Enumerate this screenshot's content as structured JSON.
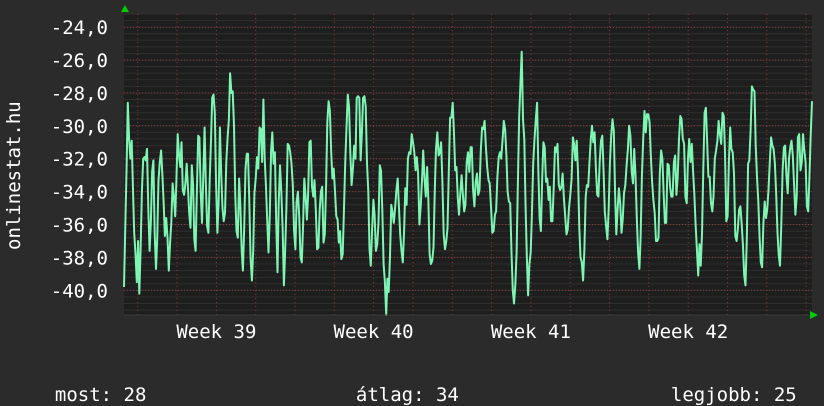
{
  "watermark": "onlinestat.hu",
  "stats": [
    {
      "label": "most:",
      "value": "28"
    },
    {
      "label": "átlag:",
      "value": "34"
    },
    {
      "label": "legjobb:",
      "value": "25"
    }
  ],
  "colors": {
    "background": "#2b2b2b",
    "plot_background": "#1e1e1e",
    "line": "#7ff5b4",
    "grid": "#8a3a3a",
    "axis_arrow": "#00cc00"
  },
  "chart_data": {
    "type": "line",
    "grid": true,
    "ylim": [
      -41.5,
      -23.2
    ],
    "yticks": [
      -24,
      -26,
      -28,
      -30,
      -32,
      -34,
      -36,
      -38,
      -40
    ],
    "ytick_labels": [
      "-24,0",
      "-26,0",
      "-28,0",
      "-30,0",
      "-32,0",
      "-34,0",
      "-36,0",
      "-38,0",
      "-40,0"
    ],
    "xlim": [
      0,
      350
    ],
    "xticks": [
      {
        "label": "Week 39",
        "x": 47
      },
      {
        "label": "Week 40",
        "x": 127
      },
      {
        "label": "Week 41",
        "x": 207
      },
      {
        "label": "Week 42",
        "x": 287
      }
    ],
    "series": [
      {
        "values": [
          -39.8,
          -36.1,
          -32.5,
          -28.6,
          -30.8,
          -32.0,
          -30.9,
          -33.9,
          -36.5,
          -37.8,
          -39.5,
          -37.0,
          -40.2,
          -37.5,
          -34.0,
          -32.0,
          -31.9,
          -32.1,
          -31.4,
          -35.0,
          -37.6,
          -35.8,
          -32.8,
          -32.1,
          -36.6,
          -38.7,
          -36.9,
          -33.3,
          -32.2,
          -31.5,
          -33.0,
          -34.6,
          -36.7,
          -35.6,
          -36.8,
          -38.8,
          -37.2,
          -35.9,
          -33.5,
          -34.3,
          -35.5,
          -33.3,
          -30.5,
          -31.8,
          -32.5,
          -31.0,
          -33.9,
          -34.2,
          -33.5,
          -32.3,
          -33.7,
          -35.3,
          -36.2,
          -32.4,
          -33.6,
          -36.9,
          -37.6,
          -33.9,
          -30.6,
          -30.7,
          -34.0,
          -35.9,
          -33.0,
          -30.1,
          -33.4,
          -36.1,
          -36.5,
          -33.3,
          -30.9,
          -28.3,
          -28.1,
          -29.2,
          -33.6,
          -36.5,
          -34.7,
          -30.1,
          -32.9,
          -35.0,
          -35.8,
          -35.3,
          -32.2,
          -30.7,
          -29.6,
          -26.8,
          -28.0,
          -27.9,
          -30.0,
          -34.3,
          -36.4,
          -36.8,
          -33.2,
          -34.9,
          -37.6,
          -38.8,
          -36.2,
          -32.6,
          -31.7,
          -31.7,
          -34.6,
          -38.1,
          -39.4,
          -37.6,
          -34.1,
          -33.2,
          -31.9,
          -32.6,
          -30.1,
          -30.2,
          -32.2,
          -28.4,
          -32.0,
          -33.6,
          -35.7,
          -37.7,
          -35.4,
          -31.5,
          -30.4,
          -32.3,
          -31.6,
          -35.8,
          -38.9,
          -34.7,
          -32.4,
          -34.0,
          -36.2,
          -39.7,
          -37.7,
          -35.0,
          -31.1,
          -31.2,
          -31.6,
          -32.3,
          -33.6,
          -36.4,
          -37.5,
          -34.6,
          -34.0,
          -35.5,
          -38.0,
          -38.3,
          -36.2,
          -33.2,
          -34.3,
          -35.7,
          -34.2,
          -31.0,
          -30.9,
          -33.7,
          -34.3,
          -33.3,
          -35.1,
          -37.5,
          -37.4,
          -35.1,
          -34.0,
          -33.7,
          -37.1,
          -36.6,
          -33.6,
          -29.8,
          -28.5,
          -29.1,
          -31.6,
          -33.2,
          -32.6,
          -34.0,
          -35.5,
          -35.7,
          -37.1,
          -36.4,
          -38.1,
          -37.8,
          -35.0,
          -32.3,
          -30.1,
          -28.1,
          -28.9,
          -31.6,
          -33.6,
          -32.6,
          -31.2,
          -32.0,
          -28.3,
          -28.2,
          -28.3,
          -32.1,
          -30.4,
          -28.3,
          -28.2,
          -28.8,
          -32.3,
          -34.0,
          -37.5,
          -38.5,
          -36.3,
          -34.5,
          -35.4,
          -37.6,
          -37.2,
          -35.9,
          -32.4,
          -32.7,
          -35.1,
          -38.4,
          -39.5,
          -41.5,
          -39.3,
          -40.1,
          -37.9,
          -34.8,
          -35.3,
          -35.9,
          -35.0,
          -33.9,
          -33.2,
          -34.9,
          -36.6,
          -37.6,
          -38.3,
          -36.4,
          -33.8,
          -34.8,
          -32.0,
          -31.6,
          -31.7,
          -30.5,
          -31.0,
          -31.6,
          -32.7,
          -31.9,
          -32.9,
          -36.0,
          -34.9,
          -33.3,
          -31.5,
          -33.2,
          -34.3,
          -32.5,
          -34.6,
          -37.8,
          -38.4,
          -38.2,
          -37.4,
          -33.9,
          -31.4,
          -30.4,
          -31.8,
          -31.6,
          -31.0,
          -33.4,
          -36.6,
          -37.5,
          -37.0,
          -36.2,
          -32.8,
          -29.5,
          -29.5,
          -28.6,
          -30.3,
          -32.7,
          -32.5,
          -34.4,
          -35.4,
          -34.1,
          -33.0,
          -34.2,
          -35.2,
          -34.8,
          -32.2,
          -31.6,
          -32.8,
          -31.3,
          -31.3,
          -33.9,
          -34.9,
          -33.4,
          -32.9,
          -34.2,
          -33.9,
          -31.5,
          -30.1,
          -30.2,
          -29.7,
          -31.3,
          -32.5,
          -33.3,
          -33.5,
          -34.9,
          -36.5,
          -36.4,
          -35.4,
          -35.2,
          -33.1,
          -31.9,
          -31.6,
          -32.0,
          -30.9,
          -29.7,
          -30.2,
          -31.8,
          -34.0,
          -34.6,
          -34.7,
          -37.7,
          -40.0,
          -40.8,
          -39.7,
          -37.7,
          -33.4,
          -29.4,
          -27.5,
          -25.5,
          -29.6,
          -30.8,
          -34.7,
          -37.9,
          -40.3,
          -38.4,
          -37.7,
          -35.4,
          -32.3,
          -30.8,
          -29.6,
          -28.6,
          -32.6,
          -35.6,
          -36.4,
          -33.2,
          -31.0,
          -31.3,
          -33.4,
          -33.2,
          -34.5,
          -33.7,
          -35.8,
          -35.8,
          -33.8,
          -31.3,
          -31.6,
          -31.1,
          -33.6,
          -33.9,
          -33.7,
          -32.9,
          -34.4,
          -35.5,
          -36.6,
          -36.3,
          -35.0,
          -34.2,
          -33.2,
          -30.7,
          -31.1,
          -32.1,
          -30.9,
          -32.8,
          -36.2,
          -38.0,
          -38.3,
          -39.4,
          -37.5,
          -34.3,
          -33.6,
          -33.7,
          -32.2,
          -30.8,
          -30.0,
          -31.0,
          -30.4,
          -32.6,
          -34.2,
          -34.3,
          -32.2,
          -30.9,
          -30.6,
          -32.8,
          -35.2,
          -36.1,
          -36.9,
          -35.0,
          -32.3,
          -30.6,
          -29.6,
          -30.3,
          -34.1,
          -36.6,
          -35.1,
          -33.8,
          -34.7,
          -36.5,
          -35.7,
          -34.1,
          -33.6,
          -32.4,
          -31.4,
          -30.0,
          -30.6,
          -32.8,
          -33.5,
          -31.4,
          -33.0,
          -35.6,
          -37.7,
          -38.7,
          -36.8,
          -33.1,
          -30.8,
          -29.1,
          -30.4,
          -29.3,
          -29.3,
          -29.8,
          -31.9,
          -33.4,
          -34.5,
          -35.3,
          -37.0,
          -37.0,
          -36.8,
          -32.9,
          -31.5,
          -32.0,
          -34.2,
          -35.9,
          -35.9,
          -32.3,
          -32.4,
          -33.7,
          -34.3,
          -34.3,
          -32.2,
          -31.8,
          -34.2,
          -33.1,
          -30.8,
          -29.4,
          -29.6,
          -30.8,
          -31.1,
          -34.3,
          -34.7,
          -32.0,
          -30.8,
          -32.2,
          -31.1,
          -32.8,
          -34.1,
          -36.0,
          -37.5,
          -39.1,
          -37.2,
          -38.5,
          -36.6,
          -32.6,
          -29.2,
          -28.9,
          -30.9,
          -33.1,
          -33.1,
          -34.7,
          -35.2,
          -34.3,
          -32.0,
          -31.5,
          -30.9,
          -29.7,
          -30.5,
          -31.1,
          -29.2,
          -29.4,
          -31.6,
          -35.8,
          -35.5,
          -32.2,
          -30.1,
          -31.4,
          -31.6,
          -32.9,
          -36.7,
          -37.0,
          -36.3,
          -35.1,
          -34.9,
          -36.0,
          -37.2,
          -39.1,
          -39.7,
          -36.9,
          -32.3,
          -32.1,
          -30.3,
          -27.6,
          -27.8,
          -27.9,
          -31.2,
          -33.1,
          -34.6,
          -36.8,
          -38.3,
          -38.6,
          -35.9,
          -34.6,
          -35.6,
          -35.1,
          -33.9,
          -32.2,
          -30.7,
          -31.2,
          -31.4,
          -32.3,
          -34.2,
          -36.5,
          -37.9,
          -38.5,
          -36.0,
          -32.7,
          -31.3,
          -31.2,
          -33.0,
          -34.1,
          -32.0,
          -31.3,
          -30.9,
          -31.8,
          -33.6,
          -35.4,
          -34.3,
          -30.7,
          -30.5,
          -32.7,
          -32.2,
          -30.5,
          -31.5,
          -32.2,
          -34.9,
          -35.2,
          -33.2,
          -30.6,
          -28.5
        ]
      }
    ]
  }
}
